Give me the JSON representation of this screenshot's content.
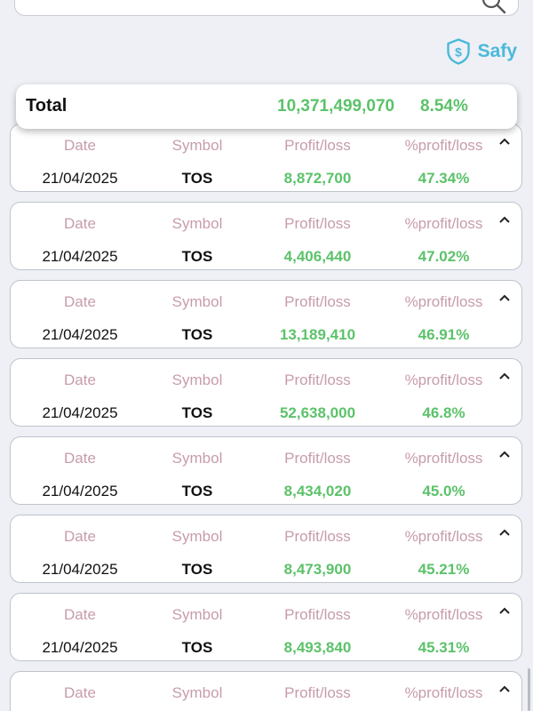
{
  "brand": {
    "name": "Safy",
    "color": "#4bb9d9"
  },
  "search": {
    "icon": "search-icon"
  },
  "total": {
    "label": "Total",
    "amount": "10,371,499,070",
    "percent": "8.54%"
  },
  "columns": {
    "date": "Date",
    "symbol": "Symbol",
    "profit": "Profit/loss",
    "percent": "%profit/loss"
  },
  "rows": [
    {
      "date": "21/04/2025",
      "symbol": "TOS",
      "profit": "8,872,700",
      "percent": "47.34%"
    },
    {
      "date": "21/04/2025",
      "symbol": "TOS",
      "profit": "4,406,440",
      "percent": "47.02%"
    },
    {
      "date": "21/04/2025",
      "symbol": "TOS",
      "profit": "13,189,410",
      "percent": "46.91%"
    },
    {
      "date": "21/04/2025",
      "symbol": "TOS",
      "profit": "52,638,000",
      "percent": "46.8%"
    },
    {
      "date": "21/04/2025",
      "symbol": "TOS",
      "profit": "8,434,020",
      "percent": "45.0%"
    },
    {
      "date": "21/04/2025",
      "symbol": "TOS",
      "profit": "8,473,900",
      "percent": "45.21%"
    },
    {
      "date": "21/04/2025",
      "symbol": "TOS",
      "profit": "8,493,840",
      "percent": "45.31%"
    },
    {
      "date": "",
      "symbol": "",
      "profit": "",
      "percent": ""
    }
  ],
  "colors": {
    "positive": "#5cc26a",
    "column_header": "#c79cac",
    "background": "#eef0f6"
  }
}
